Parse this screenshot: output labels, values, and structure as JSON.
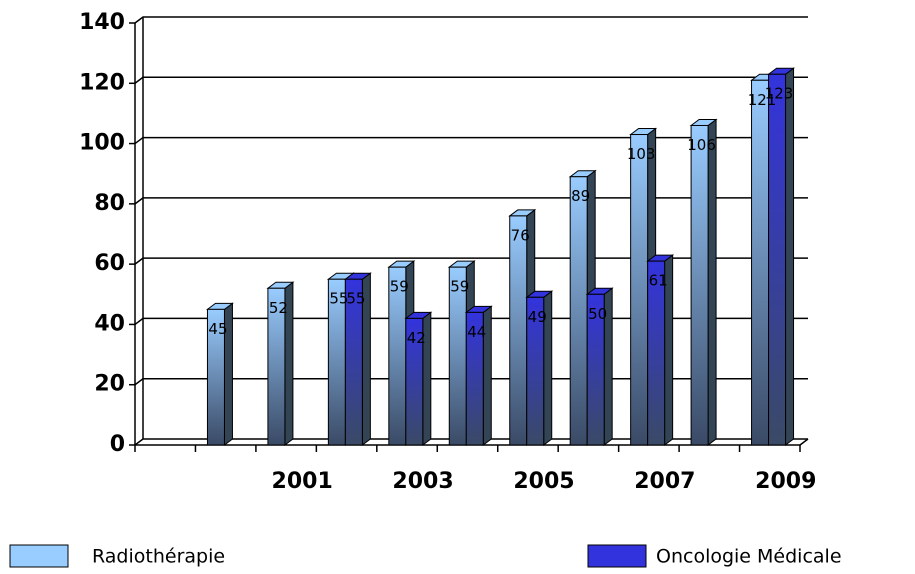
{
  "chart_data": {
    "type": "bar3d",
    "categories": [
      null,
      null,
      "2001",
      null,
      "2003",
      null,
      "2005",
      null,
      "2007",
      null,
      "2009"
    ],
    "series": [
      {
        "name": "Radiothérapie",
        "color": "#99ccff",
        "values": [
          null,
          45,
          52,
          55,
          59,
          59,
          76,
          89,
          103,
          106,
          121
        ]
      },
      {
        "name": "Oncologie Médicale",
        "color": "#3333dd",
        "values": [
          null,
          null,
          null,
          55,
          42,
          44,
          49,
          50,
          61,
          null,
          123
        ]
      }
    ],
    "ylim": [
      0,
      140
    ],
    "yticks": [
      0,
      20,
      40,
      60,
      80,
      100,
      120,
      140
    ],
    "grid": true,
    "legend": "bottom"
  }
}
